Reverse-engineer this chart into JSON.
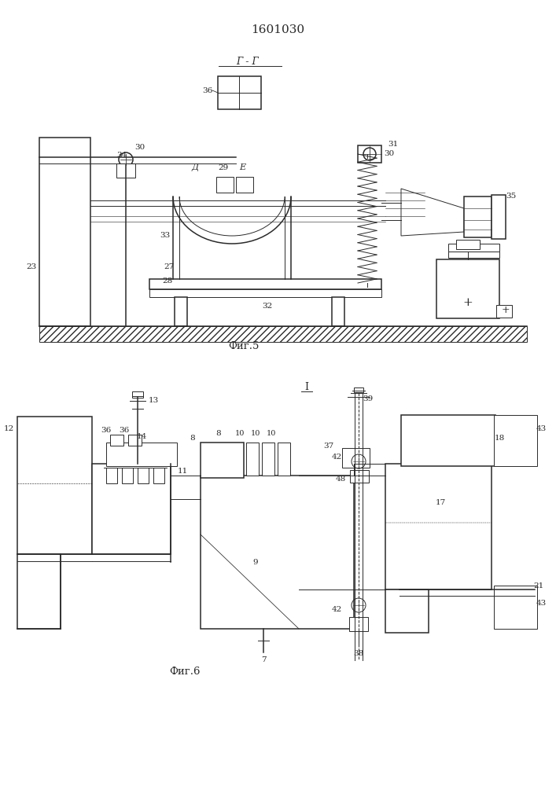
{
  "title": "1601030",
  "fig5_label": "Фиг.5",
  "fig6_label": "Фиг.6",
  "gg_label": "Г - Г",
  "fig_i_label": "I",
  "lc": "#2a2a2a"
}
